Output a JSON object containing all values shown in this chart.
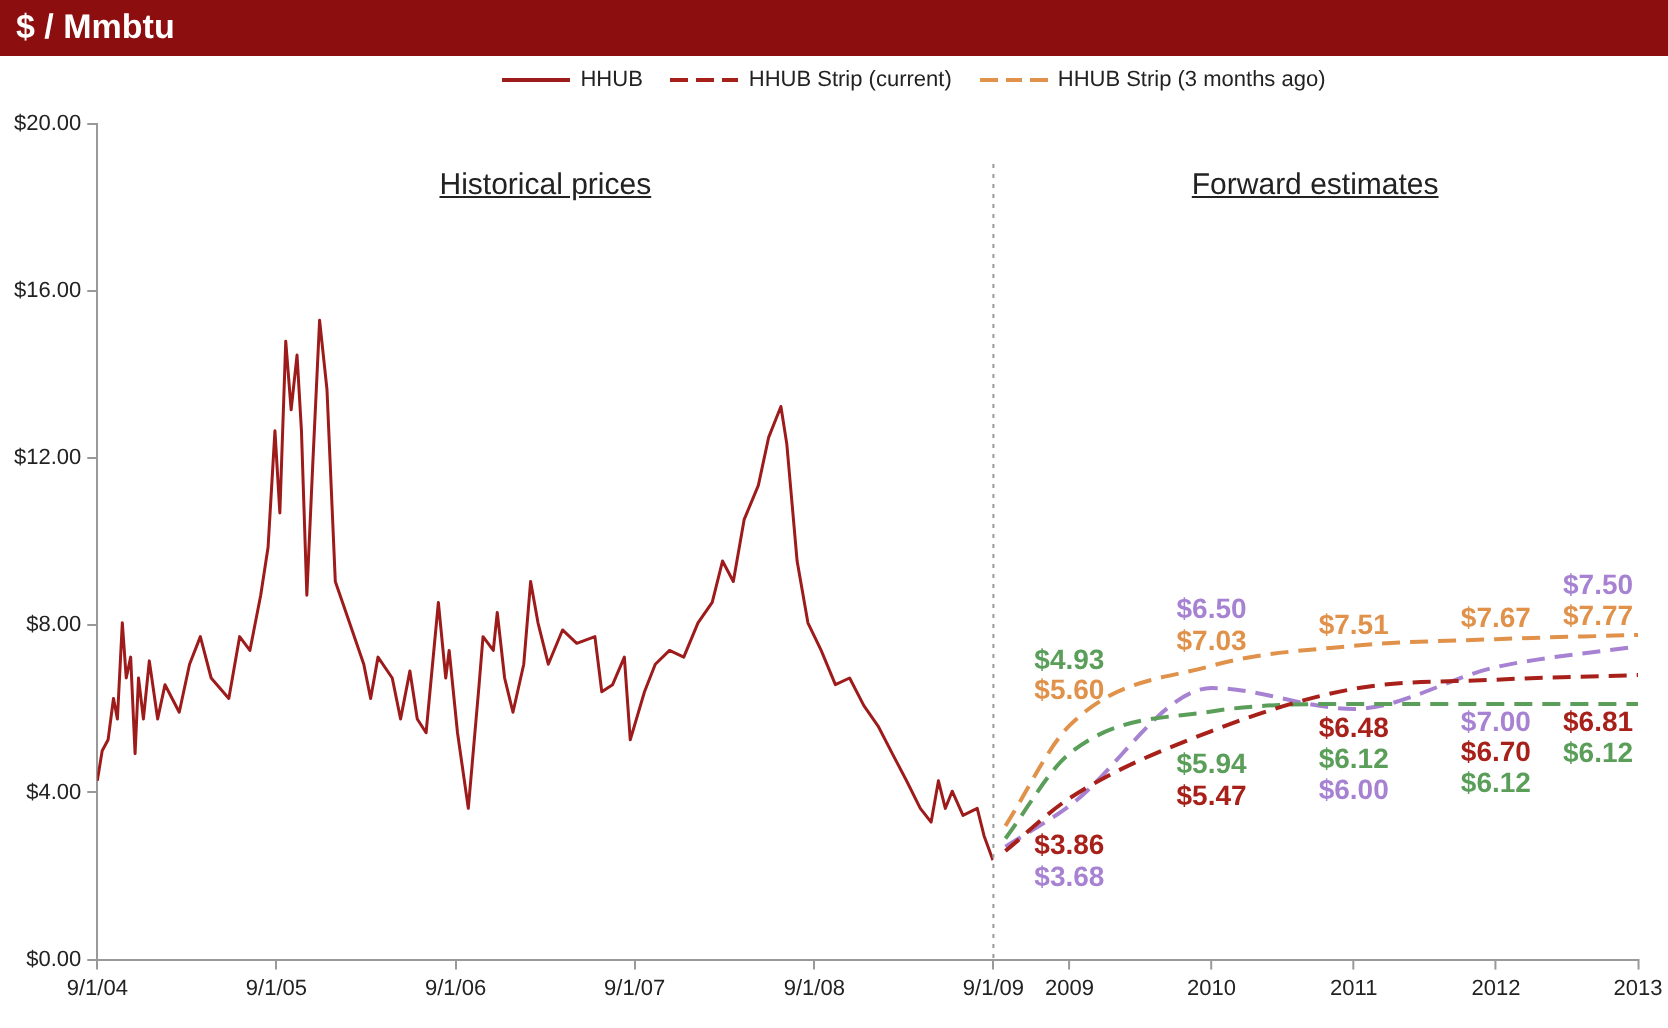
{
  "chart_data": [
    {
      "type": "line",
      "title": "$ / Mmbtu",
      "annotations": [
        "Historical prices"
      ],
      "xlim": [
        "2004-09-01",
        "2009-09-01"
      ],
      "xticks": [
        {
          "value": "2004-09-01",
          "label": "9/1/04"
        },
        {
          "value": "2005-09-01",
          "label": "9/1/05"
        },
        {
          "value": "2006-09-01",
          "label": "9/1/06"
        },
        {
          "value": "2007-09-01",
          "label": "9/1/07"
        },
        {
          "value": "2008-09-01",
          "label": "9/1/08"
        },
        {
          "value": "2009-09-01",
          "label": "9/1/09"
        }
      ],
      "ylim": [
        0,
        20
      ],
      "yticks": [
        {
          "value": 0,
          "label": "$0.00"
        },
        {
          "value": 4,
          "label": "$4.00"
        },
        {
          "value": 8,
          "label": "$8.00"
        },
        {
          "value": 12,
          "label": "$12.00"
        },
        {
          "value": 16,
          "label": "$16.00"
        },
        {
          "value": 20,
          "label": "$20.00"
        }
      ],
      "legend": "top right",
      "marker": "none",
      "ref_lines": [
        {
          "axis": "x",
          "value": "2009-09-01",
          "color": "#999999",
          "line_style": "dotted"
        }
      ],
      "series": [
        {
          "name": "HHUB",
          "color": "#9e1b1b",
          "line_style": "solid",
          "x": [
            "2004-09-01",
            "2004-09-11",
            "2004-09-23",
            "2004-10-04",
            "2004-10-12",
            "2004-10-22",
            "2004-10-30",
            "2004-11-08",
            "2004-11-17",
            "2004-11-24",
            "2004-12-04",
            "2004-12-16",
            "2005-01-02",
            "2005-01-17",
            "2005-02-15",
            "2005-03-08",
            "2005-03-30",
            "2005-04-21",
            "2005-05-27",
            "2005-06-18",
            "2005-07-09",
            "2005-07-31",
            "2005-08-15",
            "2005-08-29",
            "2005-09-08",
            "2005-09-20",
            "2005-10-01",
            "2005-10-13",
            "2005-10-22",
            "2005-11-02",
            "2005-11-14",
            "2005-11-28",
            "2005-12-13",
            "2005-12-30",
            "2006-01-28",
            "2006-02-26",
            "2006-03-12",
            "2006-03-27",
            "2006-04-25",
            "2006-05-12",
            "2006-05-31",
            "2006-06-15",
            "2006-07-03",
            "2006-07-28",
            "2006-08-12",
            "2006-08-19",
            "2006-09-05",
            "2006-09-27",
            "2006-10-19",
            "2006-10-27",
            "2006-11-17",
            "2006-11-25",
            "2006-12-10",
            "2006-12-27",
            "2007-01-18",
            "2007-02-01",
            "2007-02-16",
            "2007-03-09",
            "2007-04-07",
            "2007-05-06",
            "2007-06-12",
            "2007-06-26",
            "2007-07-18",
            "2007-08-11",
            "2007-08-23",
            "2007-09-21",
            "2007-10-13",
            "2007-11-11",
            "2007-12-10",
            "2008-01-08",
            "2008-02-06",
            "2008-02-27",
            "2008-03-20",
            "2008-04-11",
            "2008-05-10",
            "2008-05-31",
            "2008-06-25",
            "2008-07-07",
            "2008-07-28",
            "2008-08-19",
            "2008-09-15",
            "2008-10-14",
            "2008-11-12",
            "2008-12-11",
            "2009-01-09",
            "2009-02-07",
            "2009-03-08",
            "2009-04-05",
            "2009-04-27",
            "2009-05-12",
            "2009-05-26",
            "2009-06-09",
            "2009-07-01",
            "2009-07-30",
            "2009-08-13",
            "2009-08-31"
          ],
          "values": [
            4.28,
            5.0,
            5.26,
            6.25,
            5.76,
            8.06,
            6.74,
            7.24,
            4.93,
            6.74,
            5.76,
            7.15,
            5.76,
            6.58,
            5.92,
            7.07,
            7.73,
            6.74,
            6.25,
            7.73,
            7.4,
            8.72,
            9.87,
            12.66,
            10.69,
            14.8,
            13.16,
            14.47,
            12.66,
            8.72,
            11.84,
            15.3,
            13.65,
            9.05,
            8.06,
            7.07,
            6.25,
            7.24,
            6.74,
            5.76,
            6.91,
            5.76,
            5.43,
            8.55,
            6.74,
            7.4,
            5.43,
            3.62,
            6.58,
            7.73,
            7.4,
            8.31,
            6.74,
            5.92,
            7.07,
            9.05,
            8.06,
            7.07,
            7.89,
            7.57,
            7.73,
            6.41,
            6.58,
            7.24,
            5.26,
            6.41,
            7.07,
            7.4,
            7.24,
            8.06,
            8.55,
            9.54,
            9.05,
            10.53,
            11.35,
            12.5,
            13.24,
            12.34,
            9.54,
            8.06,
            7.4,
            6.58,
            6.74,
            6.08,
            5.59,
            4.93,
            4.28,
            3.62,
            3.29,
            4.28,
            3.62,
            4.03,
            3.45,
            3.62,
            2.96,
            2.38
          ]
        }
      ]
    },
    {
      "type": "line",
      "annotations": [
        "Forward estimates"
      ],
      "xlim": [
        2008.47,
        2013
      ],
      "xticks": [
        2009,
        2010,
        2011,
        2012,
        2013
      ],
      "ylim": [
        0,
        20
      ],
      "tick_labels": "x",
      "legend": "top left",
      "marker": "none",
      "series": [
        {
          "name": "HHUB Strip (current)",
          "color": "#a8201a",
          "line_style": "dashed",
          "x": [
            2008.55,
            2009,
            2010,
            2011,
            2012,
            2013
          ],
          "values": [
            2.6,
            3.86,
            5.47,
            6.48,
            6.7,
            6.81
          ],
          "value_labels": [
            null,
            "$3.86",
            "$5.47",
            "$6.48",
            "$6.70",
            "$6.81"
          ]
        },
        {
          "name": "HHUB Strip (3 months ago)",
          "color": "#e0914a",
          "line_style": "dashed",
          "x": [
            2008.55,
            2009,
            2010,
            2011,
            2012,
            2013
          ],
          "values": [
            3.2,
            5.6,
            7.03,
            7.51,
            7.67,
            7.77
          ],
          "value_labels": [
            null,
            "$5.60",
            "$7.03",
            "$7.51",
            "$7.67",
            "$7.77"
          ]
        },
        {
          "color": "#5a9e5a",
          "line_style": "dashed",
          "x": [
            2008.55,
            2009,
            2010,
            2011,
            2012,
            2013
          ],
          "values": [
            2.9,
            4.93,
            5.94,
            6.12,
            6.12,
            6.12
          ],
          "value_labels": [
            null,
            "$4.93",
            "$5.94",
            "$6.12",
            "$6.12",
            "$6.12"
          ]
        },
        {
          "color": "#a782d2",
          "line_style": "dashed",
          "x": [
            2008.55,
            2009,
            2010,
            2011,
            2012,
            2013
          ],
          "values": [
            2.7,
            3.68,
            6.5,
            6.0,
            7.0,
            7.5
          ],
          "value_labels": [
            null,
            "$3.68",
            "$6.50",
            "$6.00",
            "$7.00",
            "$7.50"
          ]
        }
      ]
    }
  ]
}
